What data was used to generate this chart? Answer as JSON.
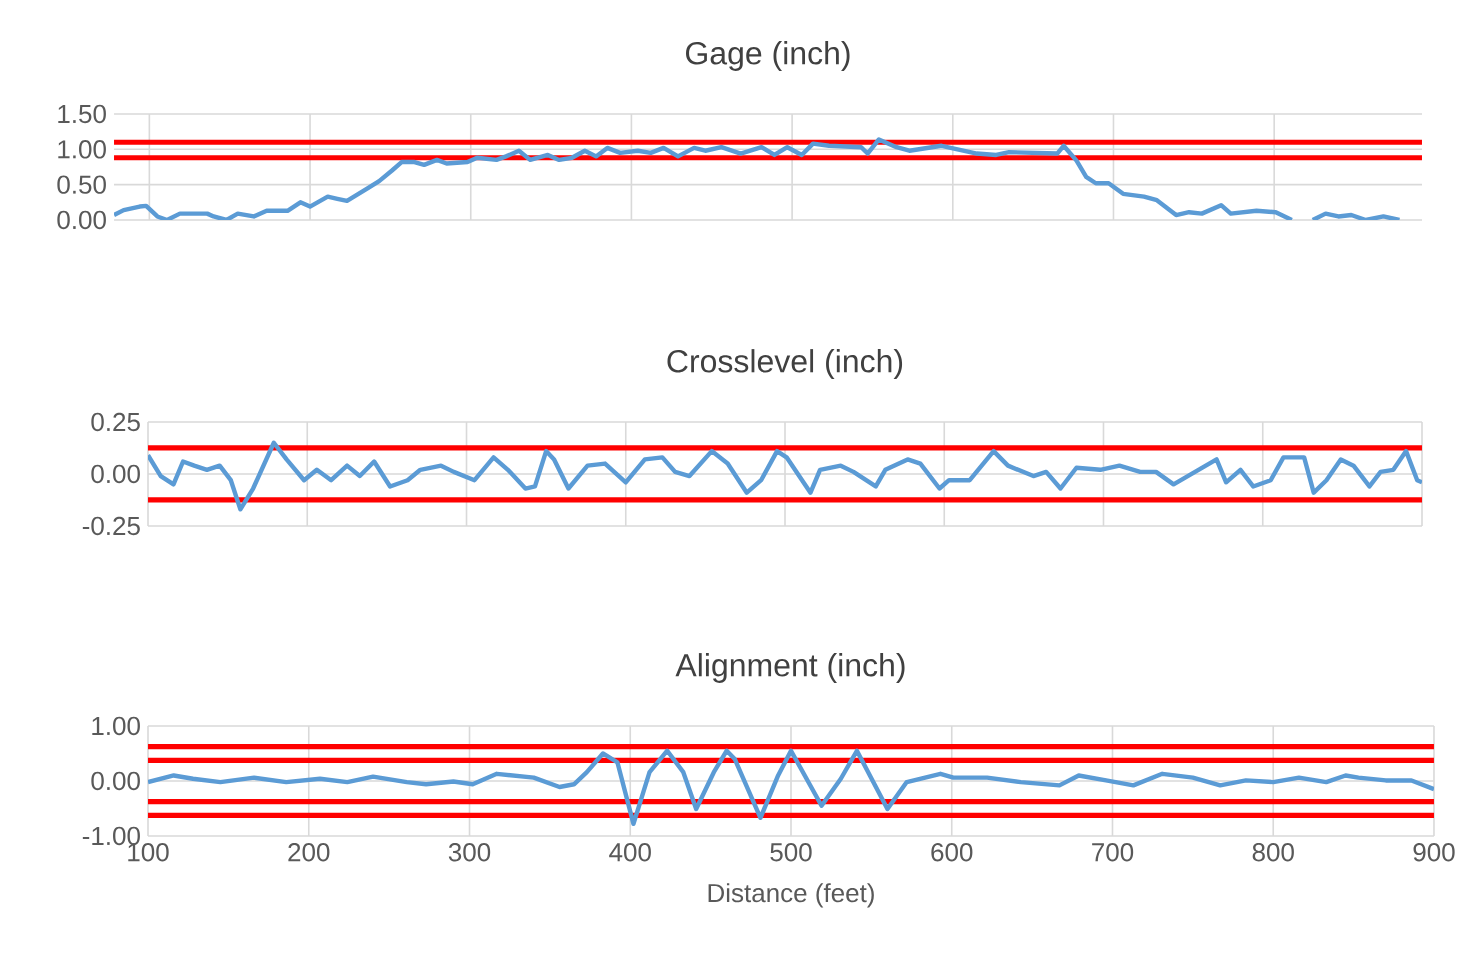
{
  "chart_data": [
    {
      "type": "line",
      "title": "Gage (inch)",
      "xlim": [
        78,
        892
      ],
      "xticks": [
        100,
        200,
        300,
        400,
        500,
        600,
        700,
        800
      ],
      "ylim": [
        0,
        1.5
      ],
      "yticks": [
        {
          "value": 0,
          "label": "0.00"
        },
        {
          "value": 0.5,
          "label": "0.50"
        },
        {
          "value": 1,
          "label": "1.00"
        },
        {
          "value": 1.5,
          "label": "1.50"
        }
      ],
      "grid": true,
      "tick_labels": "y",
      "series": [
        {
          "color": "#5b9bd5",
          "x": [
            78,
            84,
            94,
            98,
            105,
            111,
            119,
            136,
            140,
            148,
            155,
            165,
            173,
            186,
            194,
            200,
            211,
            217,
            223,
            236,
            243,
            251,
            257,
            265,
            271,
            279,
            285,
            298,
            304,
            316,
            322,
            330,
            337,
            348,
            355,
            363,
            371,
            378,
            385,
            393,
            404,
            412,
            420,
            429,
            439,
            446,
            456,
            468,
            481,
            489,
            497,
            506,
            513,
            523,
            543,
            547,
            554,
            565,
            573,
            593,
            615,
            627,
            635,
            665,
            669,
            677,
            683,
            689,
            697,
            706,
            719,
            727,
            739,
            747,
            755,
            767,
            773,
            789,
            801,
            811,
            817,
            824,
            832,
            840,
            848,
            857,
            868,
            878
          ],
          "values": [
            0.07,
            0.14,
            0.19,
            0.2,
            0.05,
            0.0,
            0.09,
            0.09,
            0.05,
            0.0,
            0.09,
            0.05,
            0.13,
            0.13,
            0.25,
            0.19,
            0.33,
            0.3,
            0.27,
            0.45,
            0.55,
            0.7,
            0.82,
            0.82,
            0.78,
            0.85,
            0.8,
            0.82,
            0.88,
            0.85,
            0.9,
            0.98,
            0.85,
            0.92,
            0.85,
            0.88,
            0.98,
            0.9,
            1.02,
            0.95,
            0.98,
            0.95,
            1.02,
            0.9,
            1.02,
            0.98,
            1.03,
            0.94,
            1.03,
            0.92,
            1.03,
            0.92,
            1.08,
            1.05,
            1.03,
            0.94,
            1.14,
            1.03,
            0.98,
            1.05,
            0.94,
            0.92,
            0.96,
            0.94,
            1.05,
            0.84,
            0.61,
            0.52,
            0.52,
            0.37,
            0.33,
            0.28,
            0.07,
            0.11,
            0.09,
            0.21,
            0.09,
            0.13,
            0.11,
            0.0,
            null,
            0.0,
            0.09,
            0.05,
            0.07,
            0.0,
            0.05,
            0.0
          ]
        }
      ],
      "ref_lines": [
        {
          "axis": "y",
          "value": 1.1,
          "color": "#ff0000"
        },
        {
          "axis": "y",
          "value": 0.88,
          "color": "#ff0000"
        }
      ]
    },
    {
      "type": "line",
      "title": "Crosslevel (inch)",
      "xlim": [
        100,
        900
      ],
      "xticks": [
        100,
        200,
        300,
        400,
        500,
        600,
        700,
        800,
        900
      ],
      "ylim": [
        -0.25,
        0.25
      ],
      "yticks": [
        {
          "value": -0.25,
          "label": "-0.25"
        },
        {
          "value": 0,
          "label": "0.00"
        },
        {
          "value": 0.25,
          "label": "0.25"
        }
      ],
      "grid": true,
      "tick_labels": "y",
      "series": [
        {
          "color": "#5b9bd5",
          "x": [
            100,
            108,
            116,
            122,
            129,
            137,
            145,
            152,
            158,
            166,
            179,
            187,
            198,
            206,
            215,
            225,
            233,
            242,
            252,
            263,
            271,
            284,
            292,
            305,
            317,
            326,
            337,
            343,
            350,
            355,
            364,
            376,
            387,
            400,
            412,
            423,
            431,
            440,
            454,
            464,
            476,
            485,
            495,
            501,
            516,
            522,
            535,
            543,
            557,
            563,
            577,
            585,
            597,
            603,
            616,
            631,
            640,
            656,
            664,
            673,
            683,
            698,
            710,
            723,
            733,
            744,
            771,
            777,
            786,
            794,
            805,
            813,
            826,
            832,
            840,
            849,
            857,
            867,
            874,
            882,
            890,
            897,
            900
          ],
          "values": [
            0.09,
            -0.01,
            -0.05,
            0.06,
            0.04,
            0.02,
            0.04,
            -0.03,
            -0.17,
            -0.07,
            0.15,
            0.07,
            -0.03,
            0.02,
            -0.03,
            0.04,
            -0.01,
            0.06,
            -0.06,
            -0.03,
            0.02,
            0.04,
            0.01,
            -0.03,
            0.08,
            0.02,
            -0.07,
            -0.06,
            0.11,
            0.07,
            -0.07,
            0.04,
            0.05,
            -0.04,
            0.07,
            0.08,
            0.01,
            -0.01,
            0.11,
            0.05,
            -0.09,
            -0.03,
            0.11,
            0.08,
            -0.09,
            0.02,
            0.04,
            0.01,
            -0.06,
            0.02,
            0.07,
            0.05,
            -0.07,
            -0.03,
            -0.03,
            0.11,
            0.04,
            -0.01,
            0.01,
            -0.07,
            0.03,
            0.02,
            0.04,
            0.01,
            0.01,
            -0.05,
            0.07,
            -0.04,
            0.02,
            -0.06,
            -0.03,
            0.08,
            0.08,
            -0.09,
            -0.03,
            0.07,
            0.04,
            -0.06,
            0.01,
            0.02,
            0.11,
            -0.03,
            -0.04
          ]
        }
      ],
      "ref_lines": [
        {
          "axis": "y",
          "value": 0.125,
          "color": "#ff0000"
        },
        {
          "axis": "y",
          "value": -0.125,
          "color": "#ff0000"
        }
      ]
    },
    {
      "type": "line",
      "title": "Alignment (inch)",
      "xlabel": "Distance (feet)",
      "xlim": [
        100,
        900
      ],
      "xticks": [
        100,
        200,
        300,
        400,
        500,
        600,
        700,
        800,
        900
      ],
      "ylim": [
        -1,
        1
      ],
      "yticks": [
        {
          "value": -1,
          "label": "-1.00"
        },
        {
          "value": 0,
          "label": "0.00"
        },
        {
          "value": 1,
          "label": "1.00"
        }
      ],
      "grid": true,
      "series": [
        {
          "color": "#5b9bd5",
          "x": [
            100,
            116,
            128,
            145,
            166,
            186,
            207,
            224,
            240,
            261,
            273,
            290,
            302,
            317,
            340,
            356,
            365,
            373,
            383,
            392,
            402,
            412,
            423,
            433,
            441,
            452,
            460,
            465,
            481,
            492,
            500,
            519,
            531,
            541,
            560,
            572,
            593,
            601,
            622,
            643,
            667,
            679,
            696,
            713,
            731,
            750,
            767,
            783,
            800,
            816,
            833,
            845,
            853,
            870,
            886,
            900
          ],
          "values": [
            -0.02,
            0.1,
            0.04,
            -0.02,
            0.06,
            -0.02,
            0.04,
            -0.02,
            0.08,
            -0.02,
            -0.06,
            -0.01,
            -0.06,
            0.13,
            0.06,
            -0.11,
            -0.06,
            0.16,
            0.5,
            0.34,
            -0.78,
            0.16,
            0.55,
            0.16,
            -0.51,
            0.16,
            0.55,
            0.4,
            -0.67,
            0.1,
            0.55,
            -0.45,
            0.04,
            0.55,
            -0.51,
            -0.02,
            0.13,
            0.06,
            0.06,
            -0.02,
            -0.08,
            0.1,
            0.01,
            -0.08,
            0.13,
            0.06,
            -0.08,
            0.01,
            -0.02,
            0.06,
            -0.02,
            0.1,
            0.06,
            0.01,
            0.01,
            -0.15
          ]
        }
      ],
      "ref_lines": [
        {
          "axis": "y",
          "value": 0.625,
          "color": "#ff0000"
        },
        {
          "axis": "y",
          "value": 0.375,
          "color": "#ff0000"
        },
        {
          "axis": "y",
          "value": -0.375,
          "color": "#ff0000"
        },
        {
          "axis": "y",
          "value": -0.625,
          "color": "#ff0000"
        }
      ]
    }
  ]
}
